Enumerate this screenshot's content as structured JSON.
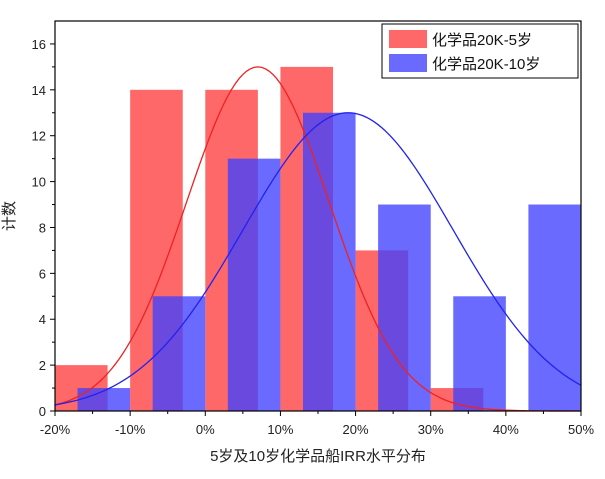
{
  "chart_data": {
    "type": "bar",
    "xlabel": "5岁及10岁化学品船IRR水平分布",
    "ylabel": "计数",
    "xlim": [
      -20,
      50
    ],
    "ylim": [
      0,
      17
    ],
    "xticks": [
      "-20%",
      "-10%",
      "0%",
      "10%",
      "20%",
      "30%",
      "40%",
      "50%"
    ],
    "xtick_values": [
      -20,
      -10,
      0,
      10,
      20,
      30,
      40,
      50
    ],
    "yticks": [
      "0",
      "2",
      "4",
      "6",
      "8",
      "10",
      "12",
      "14",
      "16"
    ],
    "ytick_values": [
      0,
      2,
      4,
      6,
      8,
      10,
      12,
      14,
      16
    ],
    "legend_position": "top-right",
    "grid": false,
    "series": [
      {
        "name": "化学品20K-5岁",
        "color": "#ff4d4d",
        "bins": [
          {
            "x0": -20,
            "x1": -13,
            "value": 2
          },
          {
            "x0": -10,
            "x1": -3,
            "value": 14
          },
          {
            "x0": 0,
            "x1": 7,
            "value": 14
          },
          {
            "x0": 10,
            "x1": 17,
            "value": 15
          },
          {
            "x0": 20,
            "x1": 27,
            "value": 7
          },
          {
            "x0": 30,
            "x1": 37,
            "value": 1
          }
        ],
        "fit_curve": {
          "mean": 7,
          "sd": 9.5,
          "peak": 15
        }
      },
      {
        "name": "化学品20K-10岁",
        "color": "#4040ff",
        "bins": [
          {
            "x0": -17,
            "x1": -10,
            "value": 1
          },
          {
            "x0": -7,
            "x1": 0,
            "value": 5
          },
          {
            "x0": 3,
            "x1": 10,
            "value": 11
          },
          {
            "x0": 13,
            "x1": 20,
            "value": 13
          },
          {
            "x0": 23,
            "x1": 30,
            "value": 9
          },
          {
            "x0": 33,
            "x1": 40,
            "value": 5
          },
          {
            "x0": 43,
            "x1": 50,
            "value": 9
          }
        ],
        "fit_curve": {
          "mean": 19,
          "sd": 14,
          "peak": 13
        }
      }
    ]
  }
}
